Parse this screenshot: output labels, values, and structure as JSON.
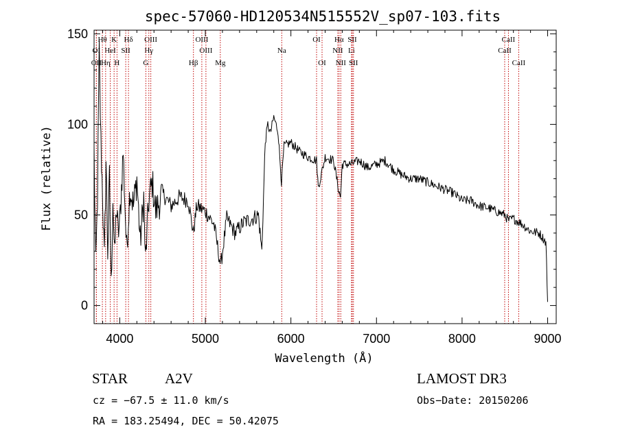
{
  "chart_data": {
    "type": "line",
    "title": "spec-57060-HD120534N515552V_sp07-103.fits",
    "xlabel": "Wavelength (Å)",
    "ylabel": "Flux (relative)",
    "xlim": [
      3700,
      9100
    ],
    "ylim": [
      -10,
      152
    ],
    "xticks": [
      4000,
      5000,
      6000,
      7000,
      8000,
      9000
    ],
    "xtick_labels": [
      "4000",
      "5000",
      "6000",
      "7000",
      "8000",
      "9000"
    ],
    "yticks": [
      0,
      50,
      100,
      150
    ],
    "ytick_labels": [
      "0",
      "50",
      "100",
      "150"
    ],
    "grid": false,
    "series": [
      {
        "name": "spectrum",
        "x": [
          3700,
          3720,
          3740,
          3760,
          3780,
          3800,
          3820,
          3840,
          3860,
          3880,
          3900,
          3920,
          3940,
          3960,
          3980,
          4000,
          4040,
          4080,
          4120,
          4160,
          4200,
          4240,
          4280,
          4300,
          4340,
          4380,
          4420,
          4500,
          4600,
          4700,
          4800,
          4860,
          4900,
          5000,
          5100,
          5180,
          5250,
          5350,
          5450,
          5550,
          5620,
          5660,
          5680,
          5700,
          5730,
          5760,
          5800,
          5850,
          5890,
          5920,
          6000,
          6100,
          6200,
          6300,
          6320,
          6400,
          6500,
          6560,
          6580,
          6600,
          6700,
          6800,
          6900,
          7000,
          7100,
          7200,
          7300,
          7400,
          7500,
          7600,
          7700,
          7800,
          7900,
          8000,
          8100,
          8200,
          8300,
          8400,
          8500,
          8540,
          8600,
          8700,
          8800,
          8900,
          8950,
          8980,
          9000
        ],
        "y": [
          85,
          20,
          60,
          140,
          90,
          60,
          25,
          80,
          30,
          70,
          10,
          60,
          25,
          55,
          40,
          45,
          85,
          30,
          65,
          55,
          70,
          35,
          60,
          24,
          58,
          68,
          52,
          62,
          55,
          60,
          58,
          40,
          55,
          52,
          45,
          22,
          48,
          40,
          46,
          48,
          50,
          30,
          60,
          90,
          100,
          95,
          104,
          96,
          68,
          88,
          90,
          85,
          82,
          80,
          65,
          82,
          80,
          63,
          60,
          78,
          78,
          80,
          76,
          78,
          80,
          75,
          72,
          70,
          70,
          68,
          66,
          64,
          62,
          58,
          58,
          55,
          54,
          52,
          50,
          47,
          48,
          45,
          41,
          40,
          37,
          35,
          2
        ]
      }
    ],
    "spectral_lines": [
      {
        "label": "Hθ",
        "wavelength": 3797,
        "row": 1
      },
      {
        "label": "K",
        "wavelength": 3934,
        "row": 1
      },
      {
        "label": "Hδ",
        "wavelength": 4102,
        "row": 1
      },
      {
        "label": "OIII",
        "wavelength": 4363,
        "row": 1
      },
      {
        "label": "OIII",
        "wavelength": 4959,
        "row": 1
      },
      {
        "label": "OI",
        "wavelength": 6300,
        "row": 1
      },
      {
        "label": "Hα",
        "wavelength": 6563,
        "row": 1
      },
      {
        "label": "SII",
        "wavelength": 6717,
        "row": 1
      },
      {
        "label": "CaII",
        "wavelength": 8542,
        "row": 1
      },
      {
        "label": "OI",
        "wavelength": 3727,
        "row": 2
      },
      {
        "label": "HeI",
        "wavelength": 3889,
        "row": 2
      },
      {
        "label": "SII",
        "wavelength": 4070,
        "row": 2
      },
      {
        "label": "Hγ",
        "wavelength": 4340,
        "row": 2
      },
      {
        "label": "OIII",
        "wavelength": 5007,
        "row": 2
      },
      {
        "label": "Na",
        "wavelength": 5893,
        "row": 2
      },
      {
        "label": "NII",
        "wavelength": 6548,
        "row": 2
      },
      {
        "label": "Li",
        "wavelength": 6708,
        "row": 2
      },
      {
        "label": "CaII",
        "wavelength": 8498,
        "row": 2
      },
      {
        "label": "OII",
        "wavelength": 3727,
        "row": 3
      },
      {
        "label": "Hη",
        "wavelength": 3835,
        "row": 3
      },
      {
        "label": "H",
        "wavelength": 3968,
        "row": 3
      },
      {
        "label": "G",
        "wavelength": 4305,
        "row": 3
      },
      {
        "label": "Hβ",
        "wavelength": 4861,
        "row": 3
      },
      {
        "label": "Mg",
        "wavelength": 5175,
        "row": 3
      },
      {
        "label": "OI",
        "wavelength": 6364,
        "row": 3
      },
      {
        "label": "NII",
        "wavelength": 6583,
        "row": 3
      },
      {
        "label": "SII",
        "wavelength": 6731,
        "row": 3
      },
      {
        "label": "CaII",
        "wavelength": 8662,
        "row": 3
      }
    ]
  },
  "info": {
    "object_type": "STAR",
    "subclass": "A2V",
    "survey": "LAMOST DR3",
    "cz": "cz = −67.5 ± 11.0 km/s",
    "obs_date": "Obs−Date: 20150206",
    "coords": "RA = 183.25494, DEC =  50.42075"
  }
}
